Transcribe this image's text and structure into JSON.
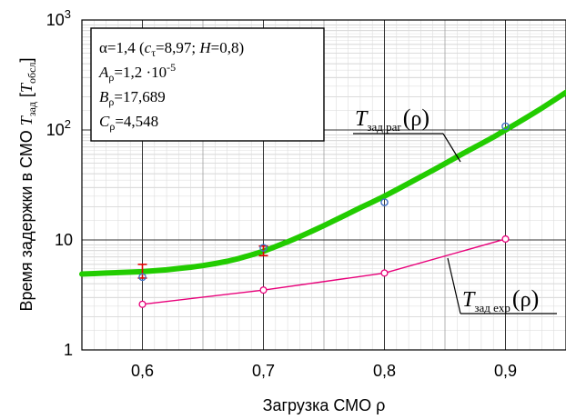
{
  "chart_data": {
    "type": "line",
    "xlabel": "Загрузка СМО ρ",
    "ylabel": {
      "prefix": "Время задержки в СМО",
      "symbol": "T",
      "symbol_sub": "зад",
      "units_symbol": "T",
      "units_sub": "обсл"
    },
    "xlim": [
      0.55,
      0.95
    ],
    "ylim": [
      1,
      1000
    ],
    "yscale": "log",
    "x_ticks": [
      0.6,
      0.7,
      0.8,
      0.9
    ],
    "x_tick_labels": [
      "0,6",
      "0,7",
      "0,8",
      "0,9"
    ],
    "y_tick_labels": [
      {
        "value": 1,
        "base": "1",
        "exp": ""
      },
      {
        "value": 10,
        "base": "10",
        "exp": ""
      },
      {
        "value": 100,
        "base": "10",
        "exp": "2"
      },
      {
        "value": 1000,
        "base": "10",
        "exp": "3"
      }
    ],
    "grid": true,
    "info_box": {
      "line1": {
        "text": "α=1,4 (",
        "c": "c",
        "c_sub": "τ",
        "c_val": "=8,97; ",
        "h": "H",
        "h_val": "=0,8)"
      },
      "line2": {
        "sym": "A",
        "sub": "ρ",
        "val": "=1,2 ·10",
        "exp": "-5"
      },
      "line3": {
        "sym": "B",
        "sub": "ρ",
        "val": "=17,689"
      },
      "line4": {
        "sym": "C",
        "sub": "ρ",
        "val": "=4,548"
      }
    },
    "series": [
      {
        "key": "par",
        "color": "#22cc00",
        "kind": "fit-curve",
        "x": [
          0.55,
          0.56,
          0.57,
          0.58,
          0.59,
          0.6,
          0.61,
          0.62,
          0.63,
          0.64,
          0.65,
          0.66,
          0.67,
          0.68,
          0.69,
          0.7,
          0.71,
          0.72,
          0.73,
          0.74,
          0.75,
          0.76,
          0.77,
          0.78,
          0.79,
          0.8,
          0.81,
          0.82,
          0.83,
          0.84,
          0.85,
          0.86,
          0.87,
          0.88,
          0.89,
          0.9,
          0.91,
          0.92,
          0.93,
          0.94,
          0.95
        ],
        "y": [
          4.9,
          4.95,
          5.0,
          5.05,
          5.1,
          5.15,
          5.25,
          5.35,
          5.5,
          5.65,
          5.85,
          6.1,
          6.4,
          6.8,
          7.3,
          7.9,
          8.7,
          9.6,
          10.7,
          12.0,
          13.5,
          15.3,
          17.3,
          19.6,
          22.1,
          25.0,
          28.6,
          32.7,
          37.5,
          43.0,
          49.5,
          57.0,
          65.5,
          75.0,
          86.0,
          100,
          116,
          135,
          158,
          186,
          220
        ]
      },
      {
        "key": "exp",
        "color": "#e8007a",
        "kind": "measured",
        "x": [
          0.6,
          0.7,
          0.8,
          0.9
        ],
        "y": [
          2.6,
          3.5,
          5.0,
          10.2
        ]
      },
      {
        "key": "sim",
        "color": "#4472c4",
        "kind": "markers",
        "x": [
          0.6,
          0.7,
          0.8,
          0.9
        ],
        "y": [
          4.6,
          8.5,
          22.0,
          108
        ]
      }
    ],
    "error_bars": [
      {
        "x": 0.6,
        "low": 4.5,
        "high": 6.0,
        "color": "#dd0000"
      },
      {
        "x": 0.7,
        "low": 7.2,
        "high": 8.8,
        "color": "#dd0000"
      }
    ],
    "annotations": [
      {
        "series": "par",
        "sym": "T",
        "sub": "зад par",
        "arg": "ρ"
      },
      {
        "series": "exp",
        "sym": "T",
        "sub": "зад exp",
        "arg": "ρ"
      }
    ]
  }
}
